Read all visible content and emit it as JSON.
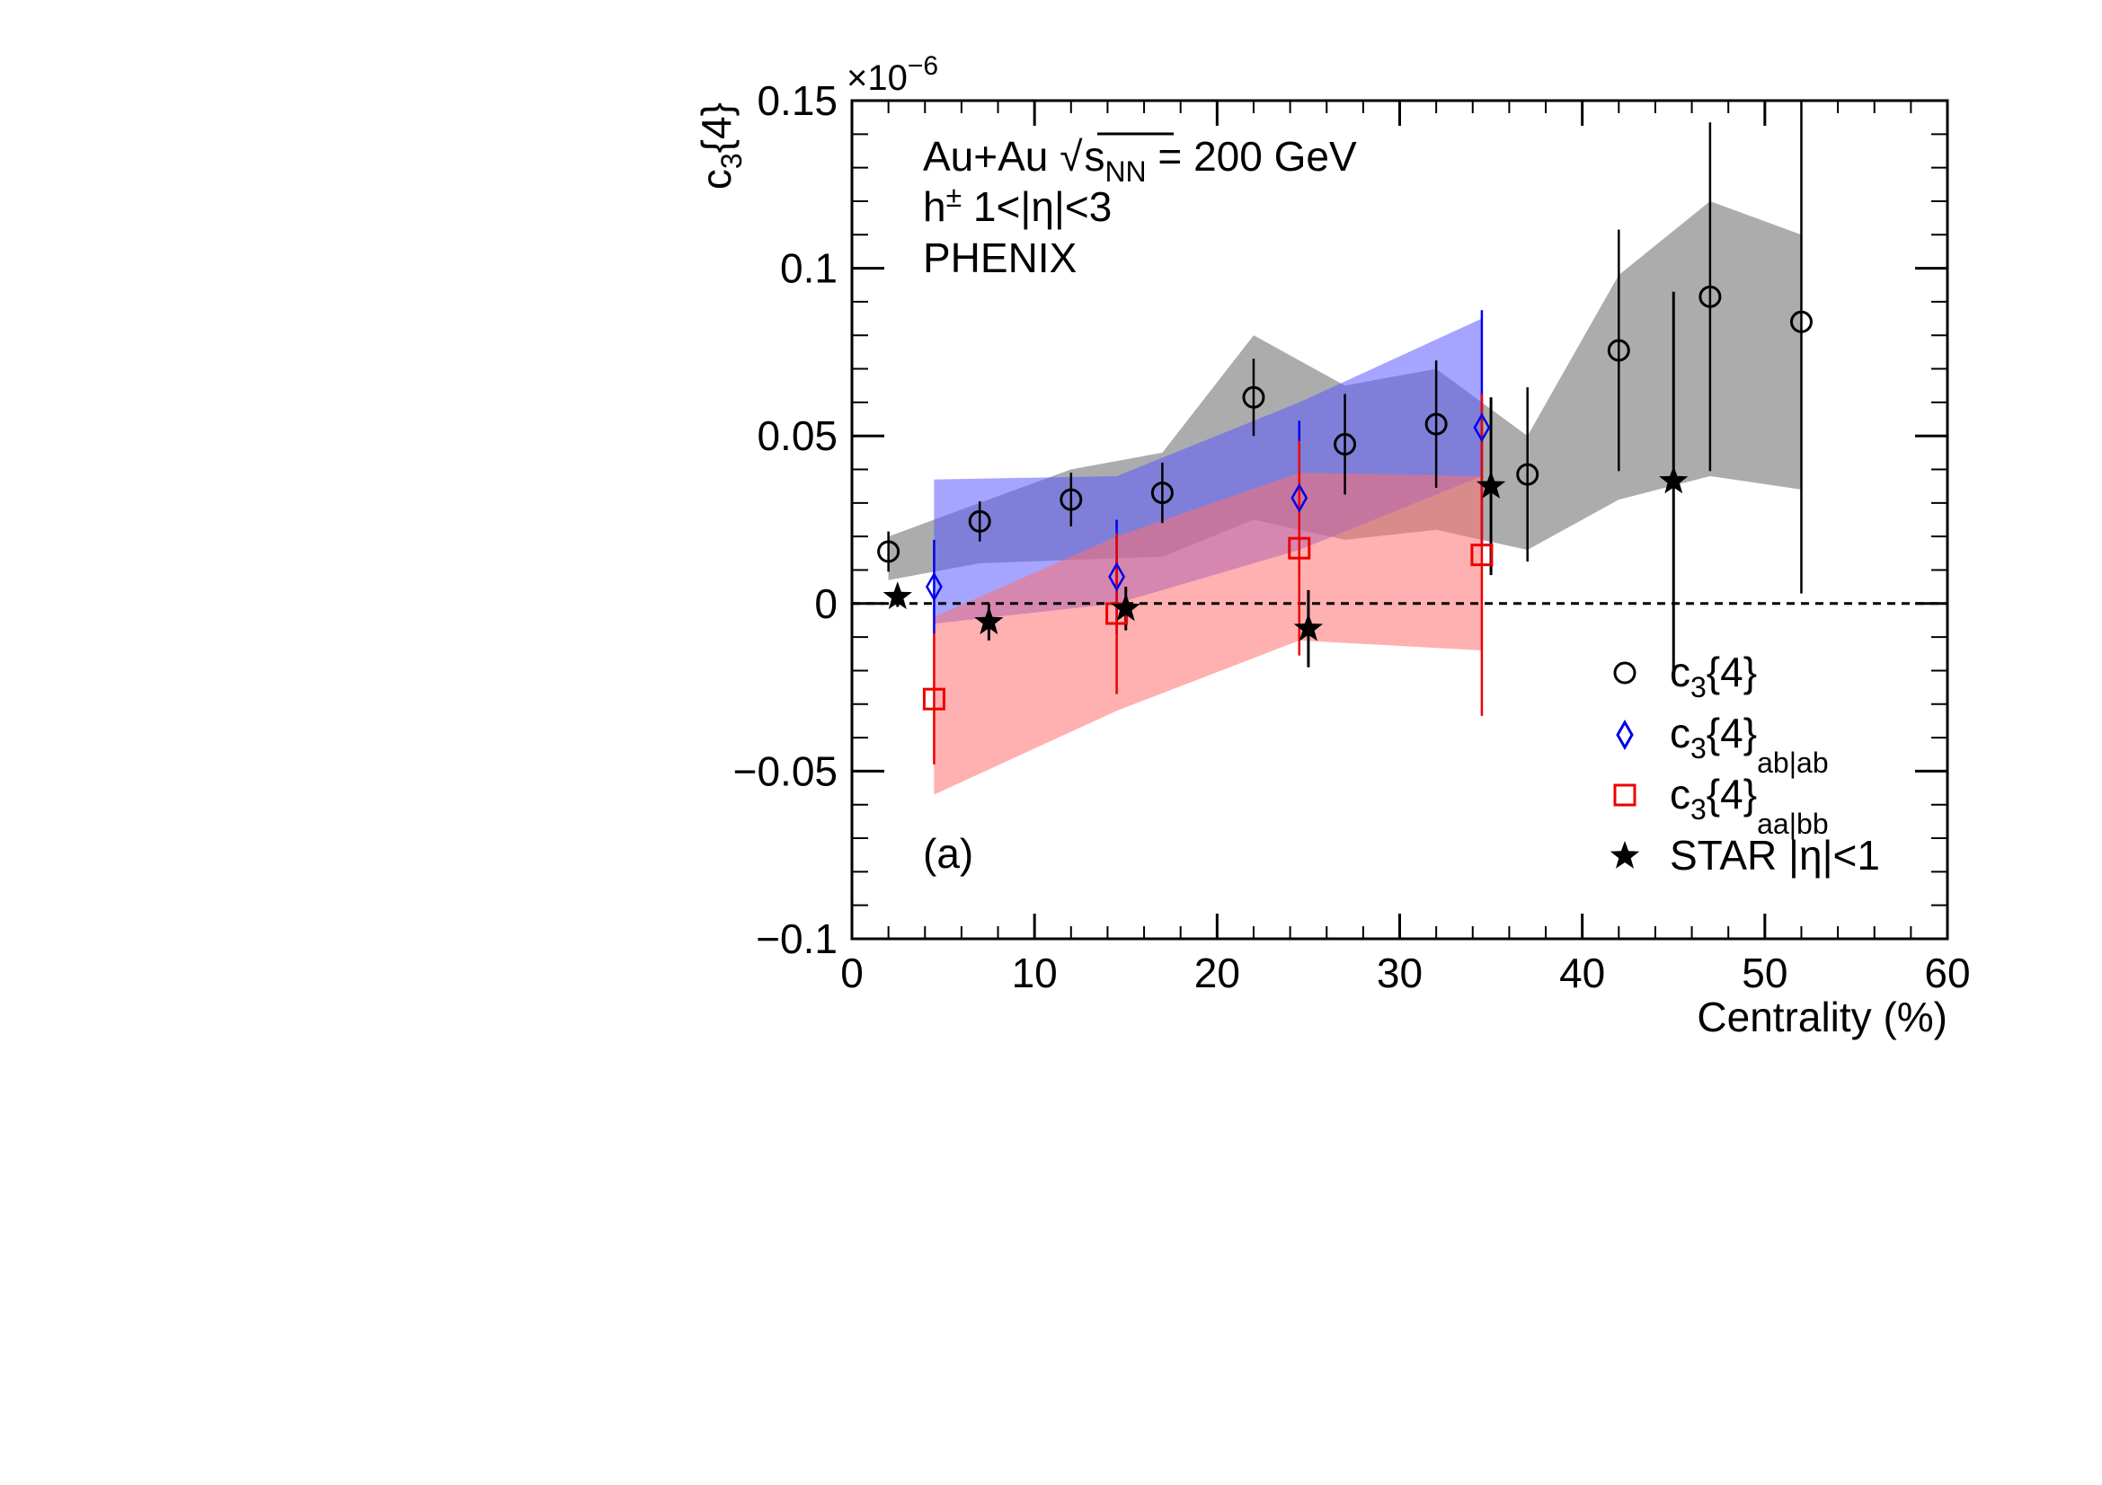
{
  "chart_data": {
    "type": "scatter",
    "xlabel": "Centrality (%)",
    "ylabel": "c3{4}",
    "y_multiplier": "×10^-6",
    "xlim": [
      0,
      60
    ],
    "ylim": [
      -0.1,
      0.15
    ],
    "x_ticks": [
      0,
      10,
      20,
      30,
      40,
      50,
      60
    ],
    "y_ticks": [
      -0.1,
      -0.05,
      0,
      0.05,
      0.1,
      0.15
    ],
    "x_tick_labels": [
      "0",
      "10",
      "20",
      "30",
      "40",
      "50",
      "60"
    ],
    "y_tick_labels": [
      "−0.1",
      "−0.05",
      "0",
      "0.05",
      "0.1",
      "0.15"
    ],
    "annotations": {
      "system": "Au+Au √sNN = 200 GeV",
      "particles": "h± 1<|η|<3",
      "experiment": "PHENIX",
      "panel": "(a)"
    },
    "reference_line": 0,
    "legend_position": "bottom-right",
    "series": [
      {
        "name": "c3{4}",
        "marker": "open-circle",
        "color": "#000000",
        "band_color": "#7f7f7f",
        "x": [
          2,
          7,
          12,
          17,
          22,
          27,
          32,
          37,
          42,
          47,
          52
        ],
        "y": [
          0.0155,
          0.0245,
          0.031,
          0.033,
          0.0615,
          0.0475,
          0.0535,
          0.0385,
          0.0755,
          0.0915,
          0.084
        ],
        "err": [
          0.006,
          0.006,
          0.008,
          0.009,
          0.0115,
          0.015,
          0.019,
          0.026,
          0.036,
          0.052,
          0.081
        ],
        "sys_upper": [
          0.02,
          0.03,
          0.04,
          0.045,
          0.08,
          0.065,
          0.07,
          0.05,
          0.098,
          0.12,
          0.11
        ],
        "sys_lower": [
          0.007,
          0.012,
          0.013,
          0.014,
          0.025,
          0.019,
          0.022,
          0.016,
          0.031,
          0.038,
          0.034
        ]
      },
      {
        "name": "c3{4}ab|ab",
        "marker": "open-diamond",
        "color": "#0000ee",
        "band_color": "#5b5bff",
        "x": [
          4.5,
          14.5,
          24.5,
          34.5
        ],
        "y": [
          0.005,
          0.008,
          0.0315,
          0.0525
        ],
        "err": [
          0.014,
          0.017,
          0.023,
          0.035
        ],
        "sys_upper": [
          0.037,
          0.038,
          0.06,
          0.085
        ],
        "sys_lower": [
          -0.006,
          0.0,
          0.016,
          0.038
        ]
      },
      {
        "name": "c3{4}aa|bb",
        "marker": "open-square",
        "color": "#ee0000",
        "band_color": "#ff6f6f",
        "x": [
          4.5,
          14.5,
          24.5,
          34.5
        ],
        "y": [
          -0.0285,
          -0.003,
          0.0165,
          0.0145
        ],
        "err": [
          0.0195,
          0.024,
          0.032,
          0.048
        ],
        "sys_upper": [
          -0.004,
          0.02,
          0.039,
          0.038
        ],
        "sys_lower": [
          -0.057,
          -0.032,
          -0.011,
          -0.014
        ]
      },
      {
        "name": "STAR |η|<1",
        "marker": "filled-star",
        "color": "#000000",
        "x": [
          2.5,
          7.5,
          15,
          25,
          35,
          45
        ],
        "y": [
          0.002,
          -0.0055,
          -0.0015,
          -0.0075,
          0.035,
          0.0365
        ],
        "err": [
          0.003,
          0.0055,
          0.0065,
          0.0115,
          0.0265,
          0.0565
        ]
      }
    ]
  }
}
